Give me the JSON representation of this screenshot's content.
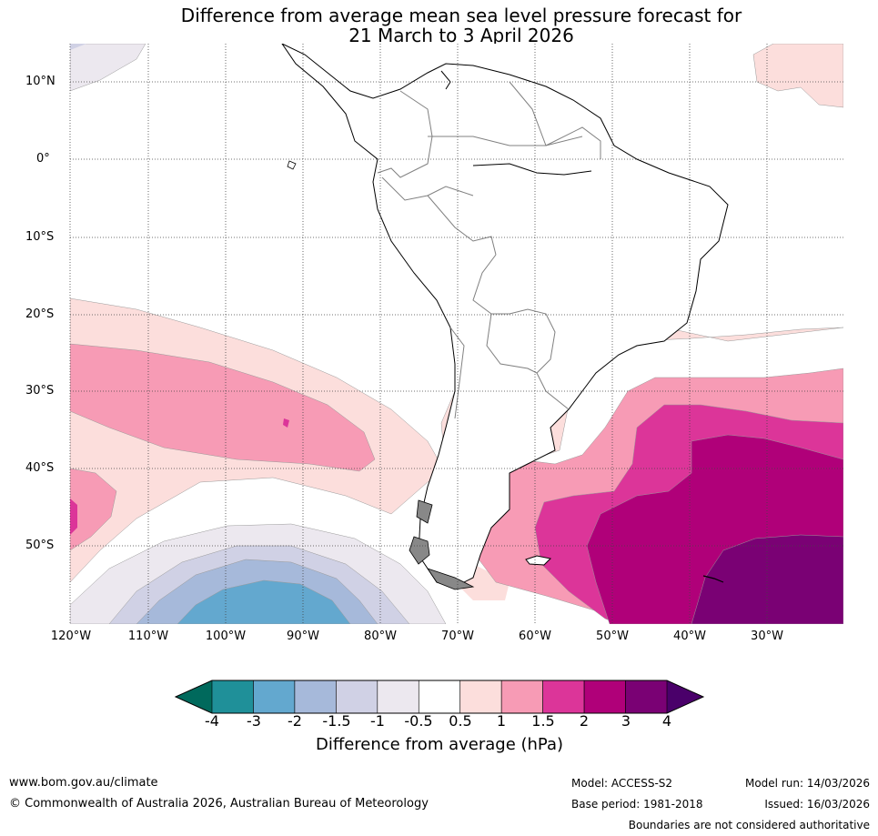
{
  "title": {
    "line1": "Difference from average mean sea level pressure forecast for",
    "line2": "21 March to 3 April 2026"
  },
  "map": {
    "lat_labels": [
      "10°N",
      "0°",
      "10°S",
      "20°S",
      "30°S",
      "40°S",
      "50°S"
    ],
    "lon_labels": [
      "120°W",
      "110°W",
      "100°W",
      "90°W",
      "80°W",
      "70°W",
      "60°W",
      "50°W",
      "40°W",
      "30°W"
    ],
    "extent": {
      "lon_min": -120,
      "lon_max": -20,
      "lat_min": -60,
      "lat_max": 15
    }
  },
  "colorbar": {
    "title": "Difference from average (hPa)",
    "tick_labels": [
      "-4",
      "-3",
      "-2",
      "-1.5",
      "-1",
      "-0.5",
      "0.5",
      "1",
      "1.5",
      "2",
      "3",
      "4"
    ],
    "colors": {
      "below_min": "#00695c",
      "bins": [
        "#1f9099",
        "#63a8cf",
        "#a6b9da",
        "#d0d1e5",
        "#ece8ef",
        "#ffffff",
        "#fcdedc",
        "#f79bb5",
        "#dc3599",
        "#b00079",
        "#7a0174"
      ],
      "above_max": "#4a006a"
    }
  },
  "footer": {
    "website": "www.bom.gov.au/climate",
    "copyright": "© Commonwealth of Australia 2026, Australian Bureau of Meteorology",
    "model": "Model: ACCESS-S2",
    "base_period": "Base period: 1981-2018",
    "model_run": "Model run: 14/03/2026",
    "issued": "Issued: 16/03/2026",
    "disclaimer": "Boundaries are not considered authoritative"
  }
}
